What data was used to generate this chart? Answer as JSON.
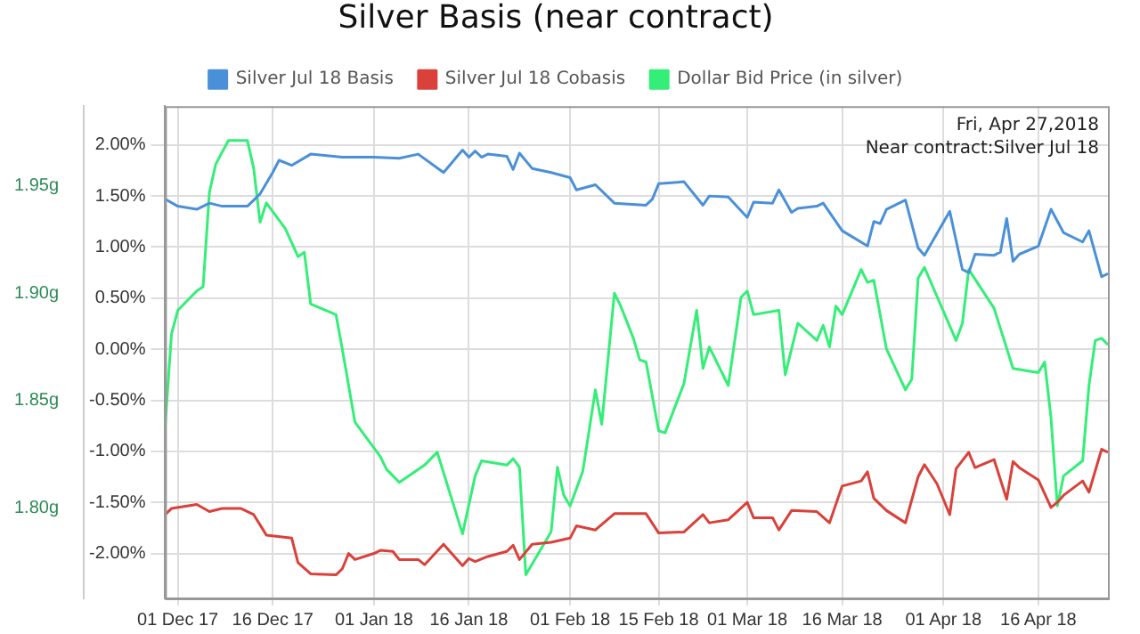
{
  "chart_data": {
    "type": "line",
    "title": "Silver Basis (near contract)",
    "annotations": [
      "Fri, Apr 27,2018",
      "Near contract:Silver Jul 18"
    ],
    "xlim": [
      "2017-11-29",
      "2018-04-27"
    ],
    "xticks": [
      {
        "value": "2017-12-01",
        "label": "01 Dec 17"
      },
      {
        "value": "2017-12-16",
        "label": "16 Dec 17"
      },
      {
        "value": "2018-01-01",
        "label": "01 Jan 18"
      },
      {
        "value": "2018-01-16",
        "label": "16 Jan 18"
      },
      {
        "value": "2018-02-01",
        "label": "01 Feb 18"
      },
      {
        "value": "2018-02-15",
        "label": "15 Feb 18"
      },
      {
        "value": "2018-03-01",
        "label": "01 Mar 18"
      },
      {
        "value": "2018-03-16",
        "label": "16 Mar 18"
      },
      {
        "value": "2018-04-01",
        "label": "01 Apr 18"
      },
      {
        "value": "2018-04-16",
        "label": "16 Apr 18"
      }
    ],
    "ylim": [
      -2.44,
      2.38
    ],
    "yticks": [
      {
        "value": -2,
        "label": "-2.00%"
      },
      {
        "value": -1.5,
        "label": "-1.50%"
      },
      {
        "value": -1,
        "label": "-1.00%"
      },
      {
        "value": -0.5,
        "label": "-0.50%"
      },
      {
        "value": 0,
        "label": "0.00%"
      },
      {
        "value": 0.5,
        "label": "0.50%"
      },
      {
        "value": 1,
        "label": "1.00%"
      },
      {
        "value": 1.5,
        "label": "1.50%"
      },
      {
        "value": 2,
        "label": "2.00%"
      }
    ],
    "y2lim": [
      1.758,
      1.987
    ],
    "y2ticks": [
      {
        "value": 1.8,
        "label": "1.80g"
      },
      {
        "value": 1.85,
        "label": "1.85g"
      },
      {
        "value": 1.9,
        "label": "1.90g"
      },
      {
        "value": 1.95,
        "label": "1.95g"
      }
    ],
    "grid": true,
    "legend": "top",
    "marker": "none",
    "line_style": "solid",
    "series": [
      {
        "name": "Silver Jul 18 Basis",
        "color": "#4a90d9",
        "x": [
          "2017-11-29",
          "2017-12-01",
          "2017-12-04",
          "2017-12-06",
          "2017-12-08",
          "2017-12-12",
          "2017-12-14",
          "2017-12-16",
          "2017-12-17",
          "2017-12-19",
          "2017-12-22",
          "2017-12-27",
          "2018-01-01",
          "2018-01-05",
          "2018-01-08",
          "2018-01-12",
          "2018-01-15",
          "2018-01-16",
          "2018-01-17",
          "2018-01-18",
          "2018-01-19",
          "2018-01-22",
          "2018-01-23",
          "2018-01-24",
          "2018-01-26",
          "2018-01-29",
          "2018-02-01",
          "2018-02-02",
          "2018-02-05",
          "2018-02-08",
          "2018-02-13",
          "2018-02-14",
          "2018-02-15",
          "2018-02-19",
          "2018-02-22",
          "2018-02-23",
          "2018-02-26",
          "2018-03-01",
          "2018-03-02",
          "2018-03-05",
          "2018-03-06",
          "2018-03-08",
          "2018-03-09",
          "2018-03-12",
          "2018-03-13",
          "2018-03-16",
          "2018-03-20",
          "2018-03-21",
          "2018-03-22",
          "2018-03-23",
          "2018-03-26",
          "2018-03-28",
          "2018-03-29",
          "2018-04-02",
          "2018-04-04",
          "2018-04-05",
          "2018-04-06",
          "2018-04-09",
          "2018-04-10",
          "2018-04-11",
          "2018-04-12",
          "2018-04-13",
          "2018-04-16",
          "2018-04-18",
          "2018-04-20",
          "2018-04-23",
          "2018-04-24",
          "2018-04-26",
          "2018-04-27"
        ],
        "values": [
          1.47,
          1.4,
          1.37,
          1.43,
          1.4,
          1.4,
          1.52,
          1.73,
          1.85,
          1.8,
          1.91,
          1.88,
          1.88,
          1.87,
          1.91,
          1.73,
          1.95,
          1.88,
          1.94,
          1.88,
          1.91,
          1.89,
          1.76,
          1.92,
          1.77,
          1.73,
          1.68,
          1.56,
          1.61,
          1.43,
          1.41,
          1.47,
          1.62,
          1.64,
          1.41,
          1.5,
          1.49,
          1.29,
          1.44,
          1.43,
          1.56,
          1.34,
          1.38,
          1.4,
          1.43,
          1.16,
          1.01,
          1.25,
          1.23,
          1.37,
          1.46,
          0.99,
          0.92,
          1.35,
          0.78,
          0.75,
          0.93,
          0.92,
          0.95,
          1.28,
          0.86,
          0.93,
          1.01,
          1.37,
          1.14,
          1.05,
          1.16,
          0.71,
          0.74
        ]
      },
      {
        "name": "Silver Jul 18 Cobasis",
        "color": "#d9413a",
        "x": [
          "2017-11-29",
          "2017-11-30",
          "2017-12-04",
          "2017-12-06",
          "2017-12-08",
          "2017-12-11",
          "2017-12-13",
          "2017-12-15",
          "2017-12-19",
          "2017-12-20",
          "2017-12-22",
          "2017-12-26",
          "2017-12-27",
          "2017-12-28",
          "2017-12-29",
          "2018-01-01",
          "2018-01-02",
          "2018-01-04",
          "2018-01-05",
          "2018-01-08",
          "2018-01-09",
          "2018-01-12",
          "2018-01-15",
          "2018-01-16",
          "2018-01-17",
          "2018-01-19",
          "2018-01-22",
          "2018-01-23",
          "2018-01-24",
          "2018-01-26",
          "2018-01-29",
          "2018-02-01",
          "2018-02-02",
          "2018-02-05",
          "2018-02-08",
          "2018-02-13",
          "2018-02-15",
          "2018-02-19",
          "2018-02-22",
          "2018-02-23",
          "2018-02-26",
          "2018-03-01",
          "2018-03-02",
          "2018-03-05",
          "2018-03-06",
          "2018-03-08",
          "2018-03-12",
          "2018-03-14",
          "2018-03-16",
          "2018-03-19",
          "2018-03-20",
          "2018-03-21",
          "2018-03-23",
          "2018-03-26",
          "2018-03-28",
          "2018-03-29",
          "2018-03-31",
          "2018-04-02",
          "2018-04-03",
          "2018-04-05",
          "2018-04-06",
          "2018-04-09",
          "2018-04-11",
          "2018-04-12",
          "2018-04-13",
          "2018-04-16",
          "2018-04-18",
          "2018-04-19",
          "2018-04-20",
          "2018-04-23",
          "2018-04-24",
          "2018-04-26",
          "2018-04-27"
        ],
        "values": [
          -1.62,
          -1.56,
          -1.52,
          -1.59,
          -1.56,
          -1.56,
          -1.62,
          -1.82,
          -1.85,
          -2.09,
          -2.2,
          -2.21,
          -2.15,
          -2.0,
          -2.06,
          -2.0,
          -1.97,
          -1.98,
          -2.06,
          -2.06,
          -2.11,
          -1.91,
          -2.12,
          -2.05,
          -2.08,
          -2.03,
          -1.98,
          -1.92,
          -2.06,
          -1.91,
          -1.89,
          -1.85,
          -1.73,
          -1.77,
          -1.61,
          -1.61,
          -1.8,
          -1.79,
          -1.62,
          -1.7,
          -1.67,
          -1.5,
          -1.65,
          -1.65,
          -1.77,
          -1.58,
          -1.59,
          -1.7,
          -1.34,
          -1.29,
          -1.2,
          -1.46,
          -1.58,
          -1.7,
          -1.25,
          -1.13,
          -1.32,
          -1.62,
          -1.17,
          -1.01,
          -1.16,
          -1.08,
          -1.47,
          -1.1,
          -1.16,
          -1.28,
          -1.55,
          -1.5,
          -1.43,
          -1.29,
          -1.4,
          -0.98,
          -1.01
        ]
      },
      {
        "name": "Dollar Bid Price (in silver)",
        "color": "#33ee77",
        "axis": "y2",
        "x": [
          "2017-11-29",
          "2017-11-30",
          "2017-12-01",
          "2017-12-04",
          "2017-12-05",
          "2017-12-06",
          "2017-12-07",
          "2017-12-09",
          "2017-12-12",
          "2017-12-13",
          "2017-12-14",
          "2017-12-15",
          "2017-12-18",
          "2017-12-20",
          "2017-12-21",
          "2017-12-22",
          "2017-12-26",
          "2017-12-27",
          "2017-12-29",
          "2018-01-02",
          "2018-01-03",
          "2018-01-05",
          "2018-01-09",
          "2018-01-11",
          "2018-01-15",
          "2018-01-17",
          "2018-01-18",
          "2018-01-22",
          "2018-01-23",
          "2018-01-24",
          "2018-01-25",
          "2018-01-29",
          "2018-01-30",
          "2018-01-31",
          "2018-02-01",
          "2018-02-03",
          "2018-02-05",
          "2018-02-06",
          "2018-02-08",
          "2018-02-09",
          "2018-02-11",
          "2018-02-12",
          "2018-02-13",
          "2018-02-15",
          "2018-02-16",
          "2018-02-19",
          "2018-02-21",
          "2018-02-22",
          "2018-02-23",
          "2018-02-26",
          "2018-02-28",
          "2018-03-01",
          "2018-03-02",
          "2018-03-06",
          "2018-03-07",
          "2018-03-09",
          "2018-03-12",
          "2018-03-13",
          "2018-03-14",
          "2018-03-15",
          "2018-03-16",
          "2018-03-19",
          "2018-03-20",
          "2018-03-21",
          "2018-03-23",
          "2018-03-26",
          "2018-03-27",
          "2018-03-28",
          "2018-03-29",
          "2018-04-03",
          "2018-04-04",
          "2018-04-05",
          "2018-04-09",
          "2018-04-12",
          "2018-04-16",
          "2018-04-17",
          "2018-04-18",
          "2018-04-19",
          "2018-04-20",
          "2018-04-23",
          "2018-04-24",
          "2018-04-25",
          "2018-04-26",
          "2018-04-27"
        ],
        "values": [
          1.838,
          1.881,
          1.892,
          1.901,
          1.903,
          1.947,
          1.96,
          1.971,
          1.971,
          1.958,
          1.933,
          1.942,
          1.93,
          1.917,
          1.919,
          1.895,
          1.89,
          1.874,
          1.84,
          1.824,
          1.818,
          1.812,
          1.82,
          1.826,
          1.788,
          1.815,
          1.822,
          1.82,
          1.823,
          1.819,
          1.769,
          1.789,
          1.819,
          1.806,
          1.801,
          1.817,
          1.855,
          1.839,
          1.9,
          1.894,
          1.879,
          1.869,
          1.868,
          1.836,
          1.835,
          1.858,
          1.892,
          1.865,
          1.875,
          1.857,
          1.898,
          1.901,
          1.89,
          1.892,
          1.862,
          1.886,
          1.878,
          1.885,
          1.875,
          1.894,
          1.89,
          1.911,
          1.905,
          1.906,
          1.874,
          1.855,
          1.86,
          1.907,
          1.912,
          1.878,
          1.886,
          1.911,
          1.893,
          1.865,
          1.863,
          1.868,
          1.842,
          1.801,
          1.815,
          1.822,
          1.857,
          1.878,
          1.879,
          1.876
        ]
      }
    ]
  }
}
